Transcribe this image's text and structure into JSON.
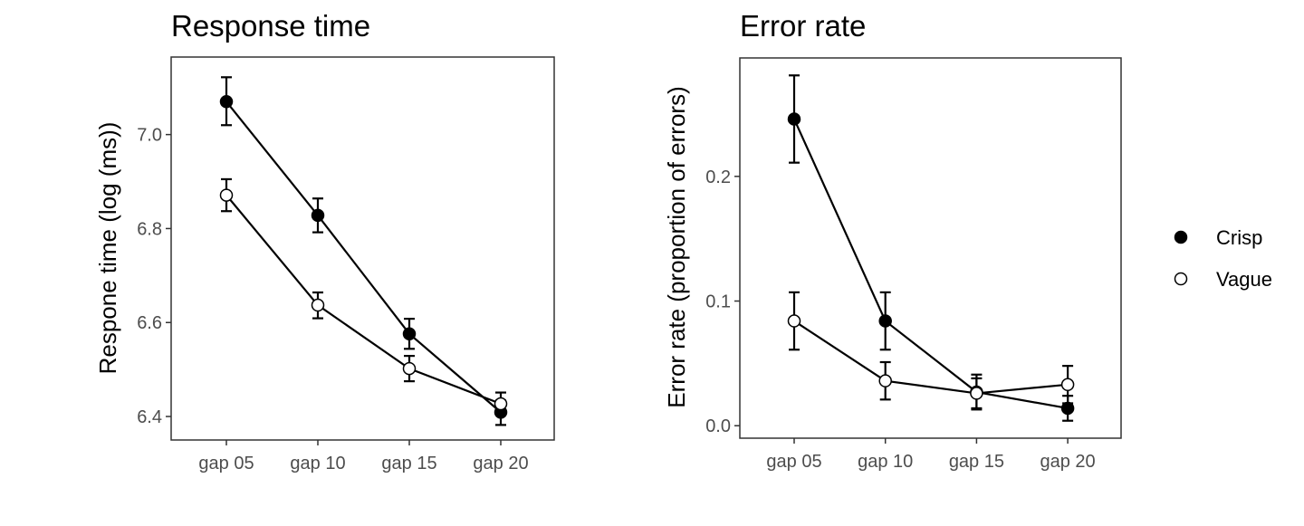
{
  "chart_data": [
    {
      "type": "line",
      "title": "Response time",
      "xlabel": "",
      "ylabel": "Respone time (log (ms))",
      "categories": [
        "gap 05",
        "gap 10",
        "gap 15",
        "gap 20"
      ],
      "ylim": [
        6.35,
        7.165
      ],
      "yticks": [
        6.4,
        6.6,
        6.8,
        7.0
      ],
      "ytick_labels": [
        "6.4",
        "6.6",
        "6.8",
        "7.0"
      ],
      "grid": false,
      "series": [
        {
          "name": "Crisp",
          "marker": "filled",
          "values": [
            7.07,
            6.828,
            6.576,
            6.409
          ],
          "err_low": [
            7.02,
            6.792,
            6.544,
            6.382
          ],
          "err_high": [
            7.122,
            6.864,
            6.608,
            6.434
          ]
        },
        {
          "name": "Vague",
          "marker": "open",
          "values": [
            6.871,
            6.637,
            6.502,
            6.427
          ],
          "err_low": [
            6.837,
            6.609,
            6.475,
            6.404
          ],
          "err_high": [
            6.905,
            6.664,
            6.529,
            6.451
          ]
        }
      ]
    },
    {
      "type": "line",
      "title": "Error rate",
      "xlabel": "",
      "ylabel": "Error rate (proportion of errors)",
      "categories": [
        "gap 05",
        "gap 10",
        "gap 15",
        "gap 20"
      ],
      "ylim": [
        -0.01,
        0.295
      ],
      "yticks": [
        0.0,
        0.1,
        0.2
      ],
      "ytick_labels": [
        "0.0",
        "0.1",
        "0.2"
      ],
      "grid": false,
      "series": [
        {
          "name": "Crisp",
          "marker": "filled",
          "values": [
            0.246,
            0.084,
            0.027,
            0.014
          ],
          "err_low": [
            0.211,
            0.061,
            0.013,
            0.004
          ],
          "err_high": [
            0.281,
            0.107,
            0.041,
            0.024
          ]
        },
        {
          "name": "Vague",
          "marker": "open",
          "values": [
            0.084,
            0.036,
            0.026,
            0.033
          ],
          "err_low": [
            0.061,
            0.021,
            0.014,
            0.018
          ],
          "err_high": [
            0.107,
            0.051,
            0.038,
            0.048
          ]
        }
      ]
    }
  ],
  "legend": {
    "placement": "right",
    "items": [
      {
        "label": "Crisp",
        "marker": "filled"
      },
      {
        "label": "Vague",
        "marker": "open"
      }
    ]
  }
}
